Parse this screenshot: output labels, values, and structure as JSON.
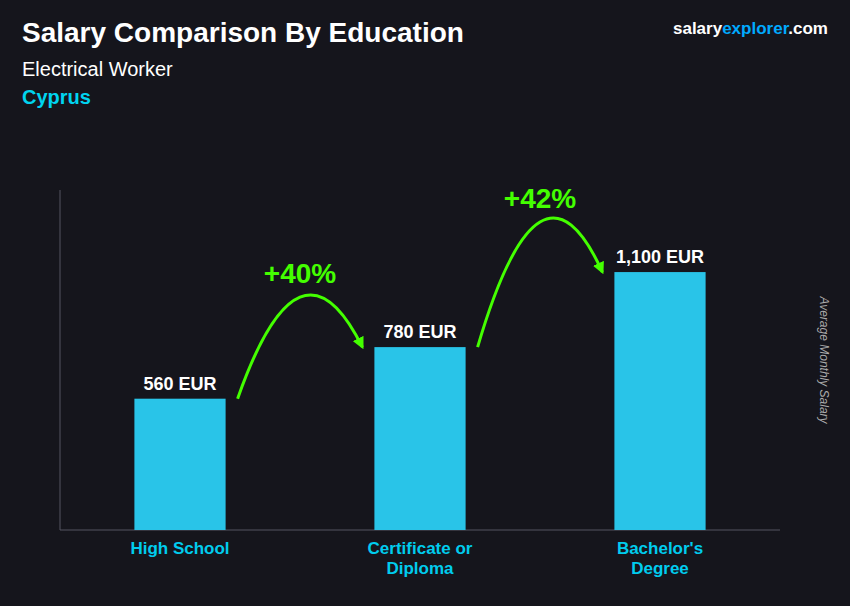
{
  "chart_data": {
    "type": "bar",
    "title": "Salary Comparison By Education",
    "subtitle": "Electrical Worker",
    "country": {
      "text": "Cyprus",
      "color": "#00d4f0"
    },
    "source": [
      {
        "text": "salary",
        "color": "#ffffff"
      },
      {
        "text": "explorer",
        "color": "#00aaff"
      },
      {
        "text": ".com",
        "color": "#ffffff"
      }
    ],
    "ylabel": "Average Monthly Salary",
    "categories": [
      "High School",
      "Certificate or\nDiploma",
      "Bachelor's\nDegree"
    ],
    "values": [
      560,
      780,
      1100
    ],
    "value_labels": [
      "560 EUR",
      "780 EUR",
      "1,100 EUR"
    ],
    "data_labels": true,
    "color": "#29c4e8",
    "annotations": [
      {
        "text": "+40%",
        "color": "#44ff00"
      },
      {
        "text": "+42%",
        "color": "#44ff00"
      }
    ],
    "ylim": [
      0,
      1450
    ],
    "tick_labels": false,
    "grid": false
  }
}
